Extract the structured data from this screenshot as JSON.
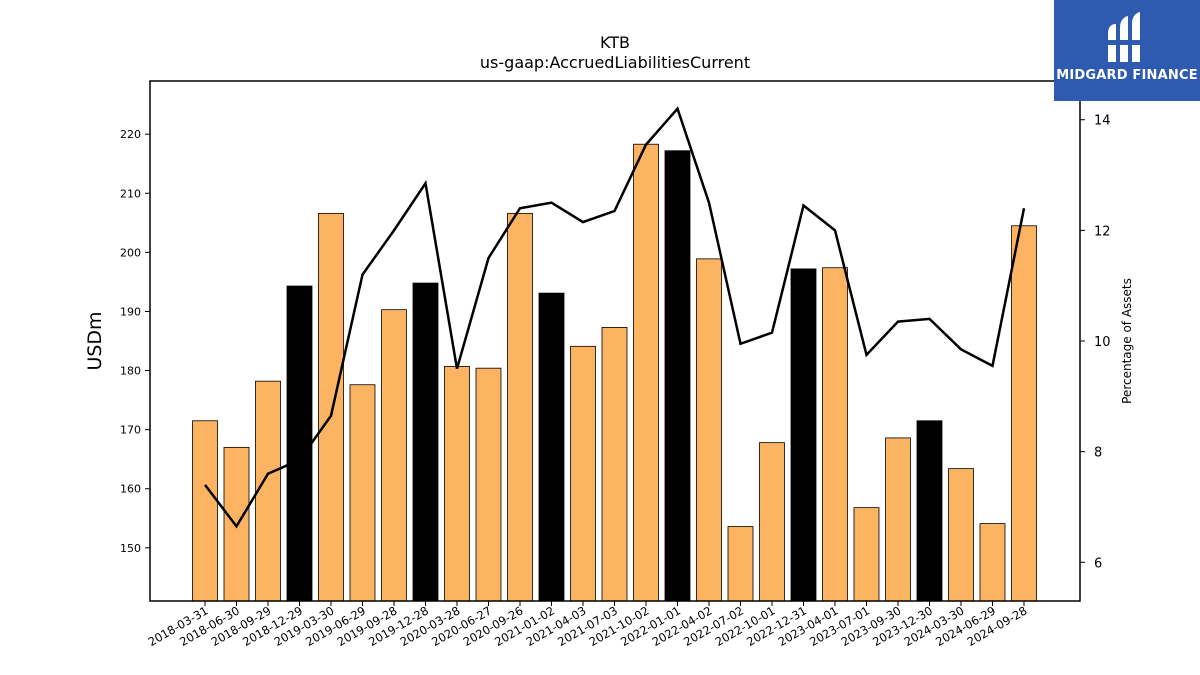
{
  "chart_data": {
    "type": "bar",
    "title": "KTB",
    "subtitle": "us-gaap:AccruedLiabilitiesCurrent",
    "ylabel": "USDm",
    "y2label": "Percentage of Assets",
    "ylim": [
      141,
      229
    ],
    "y2lim": [
      5.3,
      14.7
    ],
    "yticks": [
      150,
      160,
      170,
      180,
      190,
      200,
      210,
      220
    ],
    "y2ticks": [
      6,
      8,
      10,
      12,
      14
    ],
    "grid": false,
    "categories": [
      "2018-03-31",
      "2018-06-30",
      "2018-09-29",
      "2018-12-29",
      "2019-03-30",
      "2019-06-29",
      "2019-09-28",
      "2019-12-28",
      "2020-03-28",
      "2020-06-27",
      "2020-09-26",
      "2021-01-02",
      "2021-04-03",
      "2021-07-03",
      "2021-10-02",
      "2022-01-01",
      "2022-04-02",
      "2022-07-02",
      "2022-10-01",
      "2022-12-31",
      "2023-04-01",
      "2023-07-01",
      "2023-09-30",
      "2023-12-30",
      "2024-03-30",
      "2024-06-29",
      "2024-09-28"
    ],
    "series": [
      {
        "kind": "bar",
        "values": [
          171.5,
          167.0,
          178.2,
          194.3,
          206.6,
          177.6,
          190.3,
          194.8,
          180.7,
          180.4,
          206.6,
          193.1,
          184.1,
          187.3,
          218.3,
          217.2,
          198.9,
          153.6,
          167.8,
          197.2,
          197.4,
          156.8,
          168.6,
          171.5,
          163.4,
          154.1,
          204.5
        ],
        "colors": [
          "#fdb462",
          "#fdb462",
          "#fdb462",
          "#000000",
          "#fdb462",
          "#fdb462",
          "#fdb462",
          "#000000",
          "#fdb462",
          "#fdb462",
          "#fdb462",
          "#000000",
          "#fdb462",
          "#fdb462",
          "#fdb462",
          "#000000",
          "#fdb462",
          "#fdb462",
          "#fdb462",
          "#000000",
          "#fdb462",
          "#fdb462",
          "#fdb462",
          "#000000",
          "#fdb462",
          "#fdb462",
          "#fdb462"
        ]
      },
      {
        "kind": "line",
        "axis": "right",
        "color": "#000000",
        "values": [
          7.4,
          6.65,
          7.6,
          7.85,
          8.65,
          11.2,
          12.0,
          12.85,
          9.5,
          11.5,
          12.4,
          12.5,
          12.15,
          12.35,
          13.55,
          14.2,
          12.5,
          9.95,
          10.15,
          12.45,
          12.0,
          9.75,
          10.35,
          10.4,
          9.85,
          9.55,
          12.4
        ]
      }
    ]
  },
  "logo": {
    "text": "MIDGARD FINANCE",
    "color": "#2e5bb0"
  }
}
